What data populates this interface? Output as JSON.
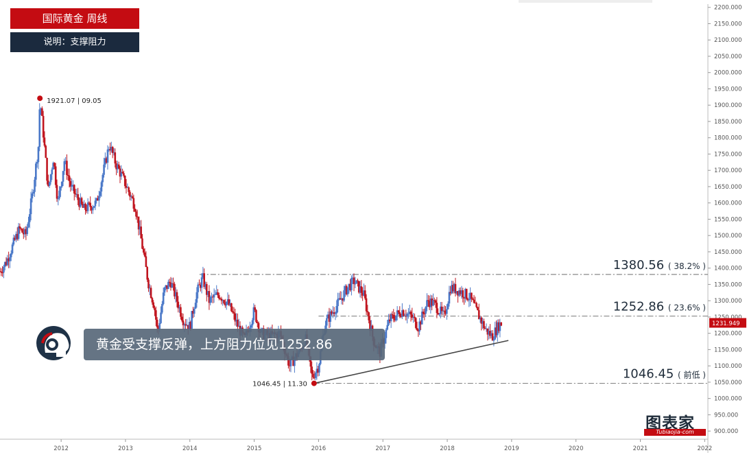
{
  "header": {
    "title": "国际黄金 周线",
    "subtitle": "说明：支撑阻力"
  },
  "callout": {
    "text": "黄金受支撑反弹，上方阻力位见1252.86"
  },
  "logo": {
    "text": "图表家",
    "subtext": "Tubiaojia-com"
  },
  "colors": {
    "title_bg": "#c40c12",
    "subtitle_bg": "#1b2a3e",
    "up_candle": "#4a78c8",
    "down_candle": "#c0151f",
    "price_badge": "#c40c12",
    "level_line": "#888888",
    "trend_line": "#444444"
  },
  "chart_data": {
    "type": "candlestick",
    "title": "国际黄金 周线",
    "x_axis": {
      "ticks": [
        "2012",
        "2013",
        "2014",
        "2015",
        "2016",
        "2017",
        "2018",
        "2019",
        "2020",
        "2021",
        "2022"
      ],
      "range": [
        2011.05,
        2022.05
      ]
    },
    "y_axis": {
      "range": [
        875,
        2210
      ],
      "ticks": [
        "900.000",
        "950.000",
        "1000.000",
        "1050.000",
        "1100.000",
        "1150.000",
        "1200.000",
        "1250.000",
        "1300.000",
        "1350.000",
        "1400.000",
        "1450.000",
        "1500.000",
        "1550.000",
        "1600.000",
        "1650.000",
        "1700.000",
        "1750.000",
        "1800.000",
        "1850.000",
        "1900.000",
        "1950.000",
        "2000.000",
        "2050.000",
        "2100.000",
        "2150.000",
        "2200.000"
      ],
      "position": "right"
    },
    "current_price": {
      "label": "1231.949",
      "value": 1231.949
    },
    "anchors": [
      [
        2011.05,
        1390
      ],
      [
        2011.15,
        1420
      ],
      [
        2011.35,
        1520
      ],
      [
        2011.45,
        1500
      ],
      [
        2011.55,
        1620
      ],
      [
        2011.65,
        1780
      ],
      [
        2011.67,
        1921
      ],
      [
        2011.72,
        1820
      ],
      [
        2011.8,
        1640
      ],
      [
        2011.88,
        1740
      ],
      [
        2011.95,
        1600
      ],
      [
        2012.05,
        1730
      ],
      [
        2012.15,
        1650
      ],
      [
        2012.35,
        1580
      ],
      [
        2012.55,
        1600
      ],
      [
        2012.75,
        1780
      ],
      [
        2012.85,
        1720
      ],
      [
        2012.95,
        1680
      ],
      [
        2013.15,
        1590
      ],
      [
        2013.25,
        1480
      ],
      [
        2013.35,
        1360
      ],
      [
        2013.45,
        1280
      ],
      [
        2013.5,
        1200
      ],
      [
        2013.6,
        1330
      ],
      [
        2013.7,
        1360
      ],
      [
        2013.8,
        1300
      ],
      [
        2013.9,
        1240
      ],
      [
        2014.0,
        1220
      ],
      [
        2014.1,
        1320
      ],
      [
        2014.2,
        1370
      ],
      [
        2014.3,
        1300
      ],
      [
        2014.45,
        1320
      ],
      [
        2014.6,
        1290
      ],
      [
        2014.75,
        1220
      ],
      [
        2014.85,
        1180
      ],
      [
        2015.0,
        1270
      ],
      [
        2015.1,
        1200
      ],
      [
        2015.25,
        1190
      ],
      [
        2015.4,
        1200
      ],
      [
        2015.55,
        1100
      ],
      [
        2015.65,
        1130
      ],
      [
        2015.8,
        1180
      ],
      [
        2015.9,
        1065
      ],
      [
        2016.0,
        1100
      ],
      [
        2016.1,
        1230
      ],
      [
        2016.3,
        1290
      ],
      [
        2016.45,
        1340
      ],
      [
        2016.55,
        1360
      ],
      [
        2016.7,
        1320
      ],
      [
        2016.85,
        1180
      ],
      [
        2016.95,
        1140
      ],
      [
        2017.1,
        1240
      ],
      [
        2017.3,
        1270
      ],
      [
        2017.45,
        1250
      ],
      [
        2017.55,
        1220
      ],
      [
        2017.7,
        1300
      ],
      [
        2017.8,
        1290
      ],
      [
        2017.95,
        1250
      ],
      [
        2018.05,
        1340
      ],
      [
        2018.2,
        1330
      ],
      [
        2018.35,
        1310
      ],
      [
        2018.45,
        1270
      ],
      [
        2018.6,
        1210
      ],
      [
        2018.7,
        1190
      ],
      [
        2018.8,
        1225
      ],
      [
        2018.85,
        1232
      ]
    ],
    "levels": [
      {
        "value": 1380.56,
        "label": "1380.56",
        "note": "( 38.2% )"
      },
      {
        "value": 1252.86,
        "label": "1252.86",
        "note": "( 23.6% )"
      },
      {
        "value": 1046.45,
        "label": "1046.45",
        "note": "( 前低 )"
      }
    ],
    "high_point": {
      "x": 2011.67,
      "y": 1921.07,
      "label": "1921.07 | 09.05"
    },
    "low_point": {
      "x": 2015.93,
      "y": 1046.45,
      "label": "1046.45 | 11.30"
    },
    "trend_line": {
      "from": [
        2015.93,
        1046.45
      ],
      "to": [
        2018.95,
        1178
      ]
    },
    "grid": false,
    "legend": "none"
  }
}
